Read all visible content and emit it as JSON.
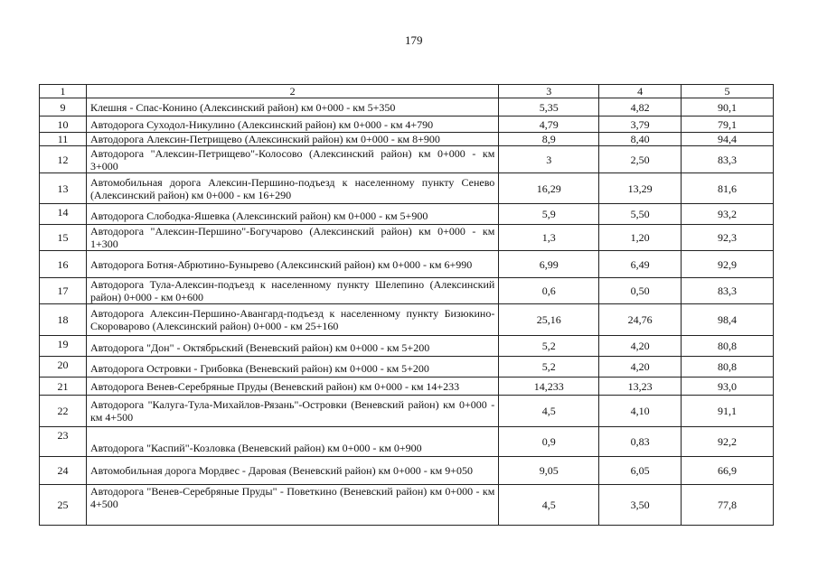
{
  "page_number": "179",
  "table": {
    "headers": [
      "1",
      "2",
      "3",
      "4",
      "5"
    ],
    "rows": [
      [
        "9",
        "Клешня - Спас-Конино (Алексинский район) км 0+000 - км 5+350",
        "5,35",
        "4,82",
        "90,1"
      ],
      [
        "10",
        "Автодорога Суходол-Никулино (Алексинский район) км 0+000 - км 4+790",
        "4,79",
        "3,79",
        "79,1"
      ],
      [
        "11",
        "Автодорога Алексин-Петрищево (Алексинский район) км 0+000 - км 8+900",
        "8,9",
        "8,40",
        "94,4"
      ],
      [
        "12",
        "Автодорога \"Алексин-Петрищево\"-Колосово (Алексинский район) км 0+000 - км 3+000",
        "3",
        "2,50",
        "83,3"
      ],
      [
        "13",
        "Автомобильная дорога Алексин-Першино-подъезд к населенному пункту Сенево (Алексинский район) км 0+000 - км 16+290",
        "16,29",
        "13,29",
        "81,6"
      ],
      [
        "14",
        "Автодорога Слободка-Яшевка (Алексинский район) км 0+000 - км 5+900",
        "5,9",
        "5,50",
        "93,2"
      ],
      [
        "15",
        "Автодорога \"Алексин-Першино\"-Богучарово (Алексинский район) км 0+000 - км 1+300",
        "1,3",
        "1,20",
        "92,3"
      ],
      [
        "16",
        "Автодорога Ботня-Абрютино-Бунырево (Алексинский район) км 0+000 - км 6+990",
        "6,99",
        "6,49",
        "92,9"
      ],
      [
        "17",
        "Автодорога Тула-Алексин-подъезд к населенному пункту Шелепино (Алексинский район) 0+000 - км 0+600",
        "0,6",
        "0,50",
        "83,3"
      ],
      [
        "18",
        "Автодорога Алексин-Першино-Авангард-подъезд к населенному пункту Бизюкино-Скороварово (Алексинский район) 0+000 - км 25+160",
        "25,16",
        "24,76",
        "98,4"
      ],
      [
        "19",
        "Автодорога \"Дон\" - Октябрьский (Веневский район) км 0+000 - км 5+200",
        "5,2",
        "4,20",
        "80,8"
      ],
      [
        "20",
        "Автодорога Островки - Грибовка (Веневский район) км 0+000 - км 5+200",
        "5,2",
        "4,20",
        "80,8"
      ],
      [
        "21",
        "Автодорога Венев-Серебряные Пруды (Веневский район) км 0+000 - км 14+233",
        "14,233",
        "13,23",
        "93,0"
      ],
      [
        "22",
        "Автодорога \"Калуга-Тула-Михайлов-Рязань\"-Островки (Веневский район) км 0+000 - км 4+500",
        "4,5",
        "4,10",
        "91,1"
      ],
      [
        "23",
        "Автодорога \"Каспий\"-Козловка (Веневский район) км 0+000 - км 0+900",
        "0,9",
        "0,83",
        "92,2"
      ],
      [
        "24",
        "Автомобильная дорога Мордвес - Даровая (Веневский район) км 0+000 - км 9+050",
        "9,05",
        "6,05",
        "66,9"
      ],
      [
        "25",
        "Автодорога \"Венев-Серебряные Пруды\" - Поветкино (Веневский район) км 0+000 - км 4+500",
        "4,5",
        "3,50",
        "77,8"
      ]
    ]
  }
}
